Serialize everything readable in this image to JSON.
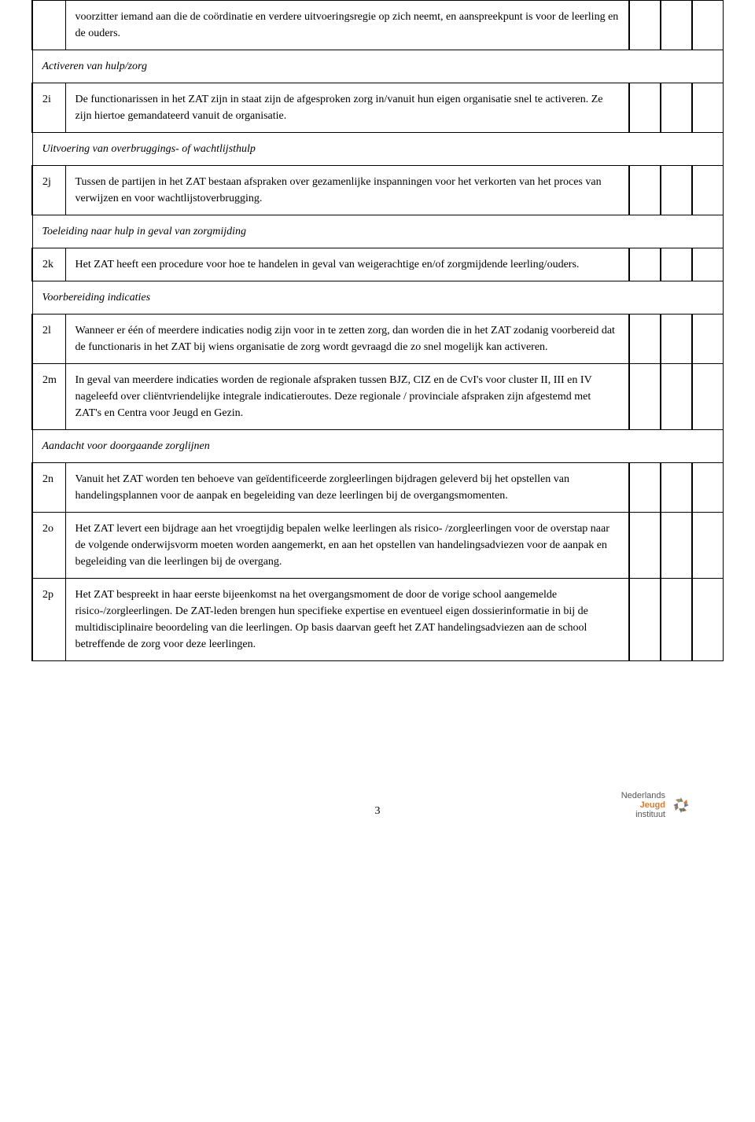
{
  "rows": [
    {
      "type": "item",
      "id": "",
      "text": "voorzitter iemand aan die de coördinatie en verdere uitvoeringsregie op zich neemt, en aanspreekpunt is voor de leerling en de ouders."
    },
    {
      "type": "section",
      "label": "Activeren van hulp/zorg"
    },
    {
      "type": "item",
      "id": "2i",
      "text": "De functionarissen in het ZAT zijn in staat zijn de afgesproken zorg in/vanuit hun eigen organisatie snel te activeren. Ze zijn hiertoe gemandateerd vanuit de organisatie."
    },
    {
      "type": "section",
      "label": "Uitvoering van overbruggings- of wachtlijsthulp"
    },
    {
      "type": "item",
      "id": "2j",
      "text": "Tussen de partijen in het ZAT bestaan afspraken over gezamenlijke inspanningen voor het verkorten van het proces van verwijzen en voor wachtlijstoverbrugging."
    },
    {
      "type": "section",
      "label": "Toeleiding naar hulp in geval van zorgmijding"
    },
    {
      "type": "item",
      "id": "2k",
      "text": "Het ZAT heeft een procedure voor hoe te handelen in geval van weigerachtige en/of zorgmijdende leerling/ouders."
    },
    {
      "type": "section",
      "label": "Voorbereiding indicaties"
    },
    {
      "type": "item",
      "id": "2l",
      "text": "Wanneer er één of meerdere indicaties nodig zijn voor in te zetten zorg, dan worden die in het ZAT zodanig voorbereid dat de functionaris in het ZAT bij wiens organisatie de zorg wordt gevraagd die zo snel mogelijk kan activeren."
    },
    {
      "type": "item",
      "id": "2m",
      "text": "In geval van meerdere indicaties worden de regionale afspraken tussen BJZ, CIZ en de CvI's voor cluster II, III en IV nageleefd over cliëntvriendelijke integrale indicatieroutes. Deze regionale / provinciale afspraken zijn afgestemd met ZAT's en Centra voor Jeugd en Gezin."
    },
    {
      "type": "section",
      "label": "Aandacht voor doorgaande zorglijnen"
    },
    {
      "type": "item",
      "id": "2n",
      "text": "Vanuit het ZAT worden ten behoeve van geïdentificeerde zorgleerlingen bijdragen geleverd bij het opstellen van handelingsplannen voor de aanpak en begeleiding van deze leerlingen bij de overgangsmomenten."
    },
    {
      "type": "item",
      "id": "2o",
      "text": "Het ZAT levert een bijdrage aan het vroegtijdig bepalen welke leerlingen als risico- /zorgleerlingen voor de overstap naar de volgende onderwijsvorm moeten worden aangemerkt, en aan het opstellen van handelingsadviezen voor de aanpak en begeleiding van die leerlingen bij de overgang."
    },
    {
      "type": "item",
      "id": "2p",
      "text": "Het ZAT bespreekt in haar eerste bijeenkomst na het overgangsmoment de door de vorige school aangemelde risico-/zorgleerlingen. De ZAT-leden brengen hun specifieke expertise en eventueel eigen dossierinformatie in bij de multidisciplinaire beoordeling van die leerlingen. Op basis daarvan geeft het ZAT handelingsadviezen aan de school betreffende de zorg voor deze leerlingen."
    }
  ],
  "page_number": "3",
  "logo": {
    "line1": "Nederlands",
    "line2": "Jeugd",
    "line3": "instituut"
  },
  "colors": {
    "border": "#000000",
    "text": "#000000",
    "logo_orange": "#d97a2e",
    "logo_gray": "#555555"
  }
}
